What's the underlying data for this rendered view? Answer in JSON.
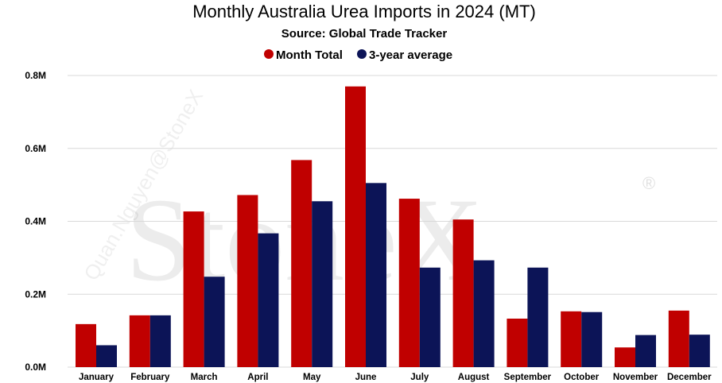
{
  "title": "Monthly Australia Urea Imports in 2024 (MT)",
  "subtitle": "Source: Global Trade Tracker",
  "watermark": {
    "brand": "StoneX",
    "registered": "®",
    "user": "Quan.Nguyen@StoneX"
  },
  "colors": {
    "month_total": "#c00000",
    "three_year_average": "#0c1457"
  },
  "chart_data": {
    "type": "bar",
    "title": "Monthly Australia Urea Imports in 2024 (MT)",
    "subtitle": "Source: Global Trade Tracker",
    "xlabel": "",
    "ylabel": "",
    "ylim": [
      0,
      800000
    ],
    "yticks": [
      0,
      200000,
      400000,
      600000,
      800000
    ],
    "ytick_labels": [
      "0.0M",
      "0.2M",
      "0.4M",
      "0.6M",
      "0.8M"
    ],
    "grid": true,
    "legend_position": "top-center",
    "categories": [
      "January",
      "February",
      "March",
      "April",
      "May",
      "June",
      "July",
      "August",
      "September",
      "October",
      "November",
      "December"
    ],
    "series": [
      {
        "name": "Month Total",
        "color": "#c00000",
        "values": [
          118000,
          142000,
          427000,
          472000,
          568000,
          770000,
          462000,
          405000,
          133000,
          153000,
          54000,
          155000
        ]
      },
      {
        "name": "3-year average",
        "color": "#0c1457",
        "values": [
          60000,
          142000,
          248000,
          367000,
          455000,
          505000,
          273000,
          293000,
          273000,
          151000,
          88000,
          89000
        ]
      }
    ]
  }
}
